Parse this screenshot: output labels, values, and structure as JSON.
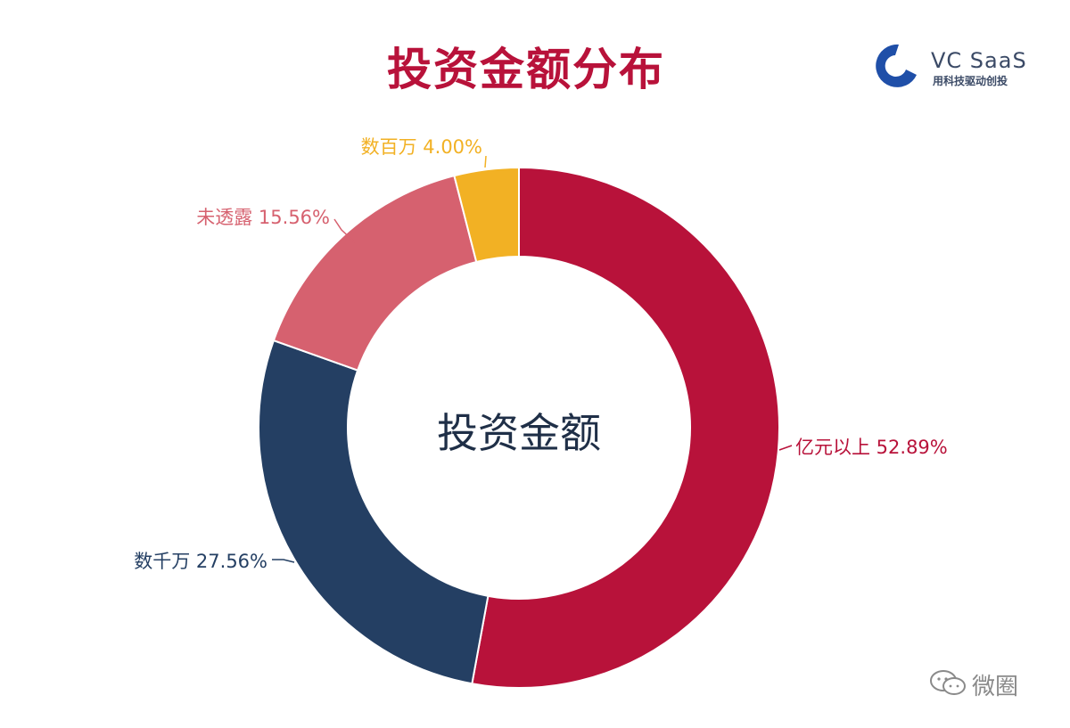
{
  "header": {
    "title": "投资金额分布"
  },
  "logo": {
    "name": "VC SaaS",
    "slogan": "用科技驱动创投",
    "color": "#1f4fa8"
  },
  "watermark": {
    "text": "微圈"
  },
  "chart_data": {
    "type": "pie",
    "style": "donut",
    "center_label": "投资金额",
    "title": "投资金额分布",
    "legend": "none",
    "slices": [
      {
        "label": "亿元以上",
        "value": 52.89,
        "label_text": "亿元以上 52.89%",
        "color": "#b8123a"
      },
      {
        "label": "数千万",
        "value": 27.56,
        "label_text": "数千万 27.56%",
        "color": "#243f63"
      },
      {
        "label": "未透露",
        "value": 15.56,
        "label_text": "未透露 15.56%",
        "color": "#d6616f"
      },
      {
        "label": "数百万",
        "value": 4.0,
        "label_text": "数百万 4.00%",
        "color": "#f2b124"
      }
    ],
    "title_color": "#b8123a",
    "center_label_color": "#1f2f47"
  }
}
